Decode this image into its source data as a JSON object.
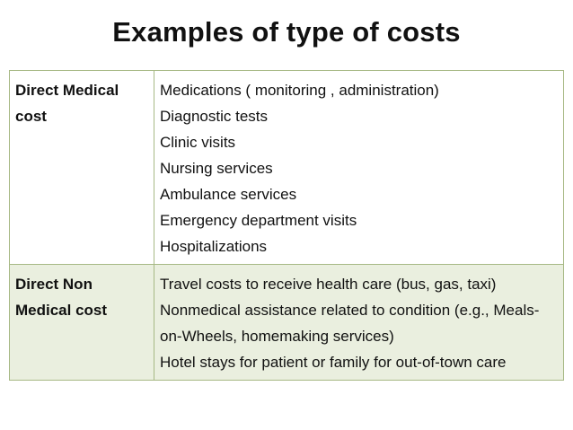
{
  "title": "Examples of type of costs",
  "rows": [
    {
      "label": "Direct Medical cost",
      "items": [
        "Medications ( monitoring , administration)",
        "Diagnostic tests",
        "Clinic visits",
        "Nursing services",
        "Ambulance services",
        "Emergency department visits",
        "Hospitalizations"
      ]
    },
    {
      "label": "Direct Non Medical cost",
      "items": [
        "Travel costs to receive health care (bus, gas, taxi)",
        "Nonmedical assistance related to condition (e.g., Meals-on-Wheels, homemaking services)",
        "Hotel stays for patient or family for out-of-town care"
      ]
    }
  ],
  "colors": {
    "border": "#a7b985",
    "row_2_background": "#eaefdf"
  }
}
